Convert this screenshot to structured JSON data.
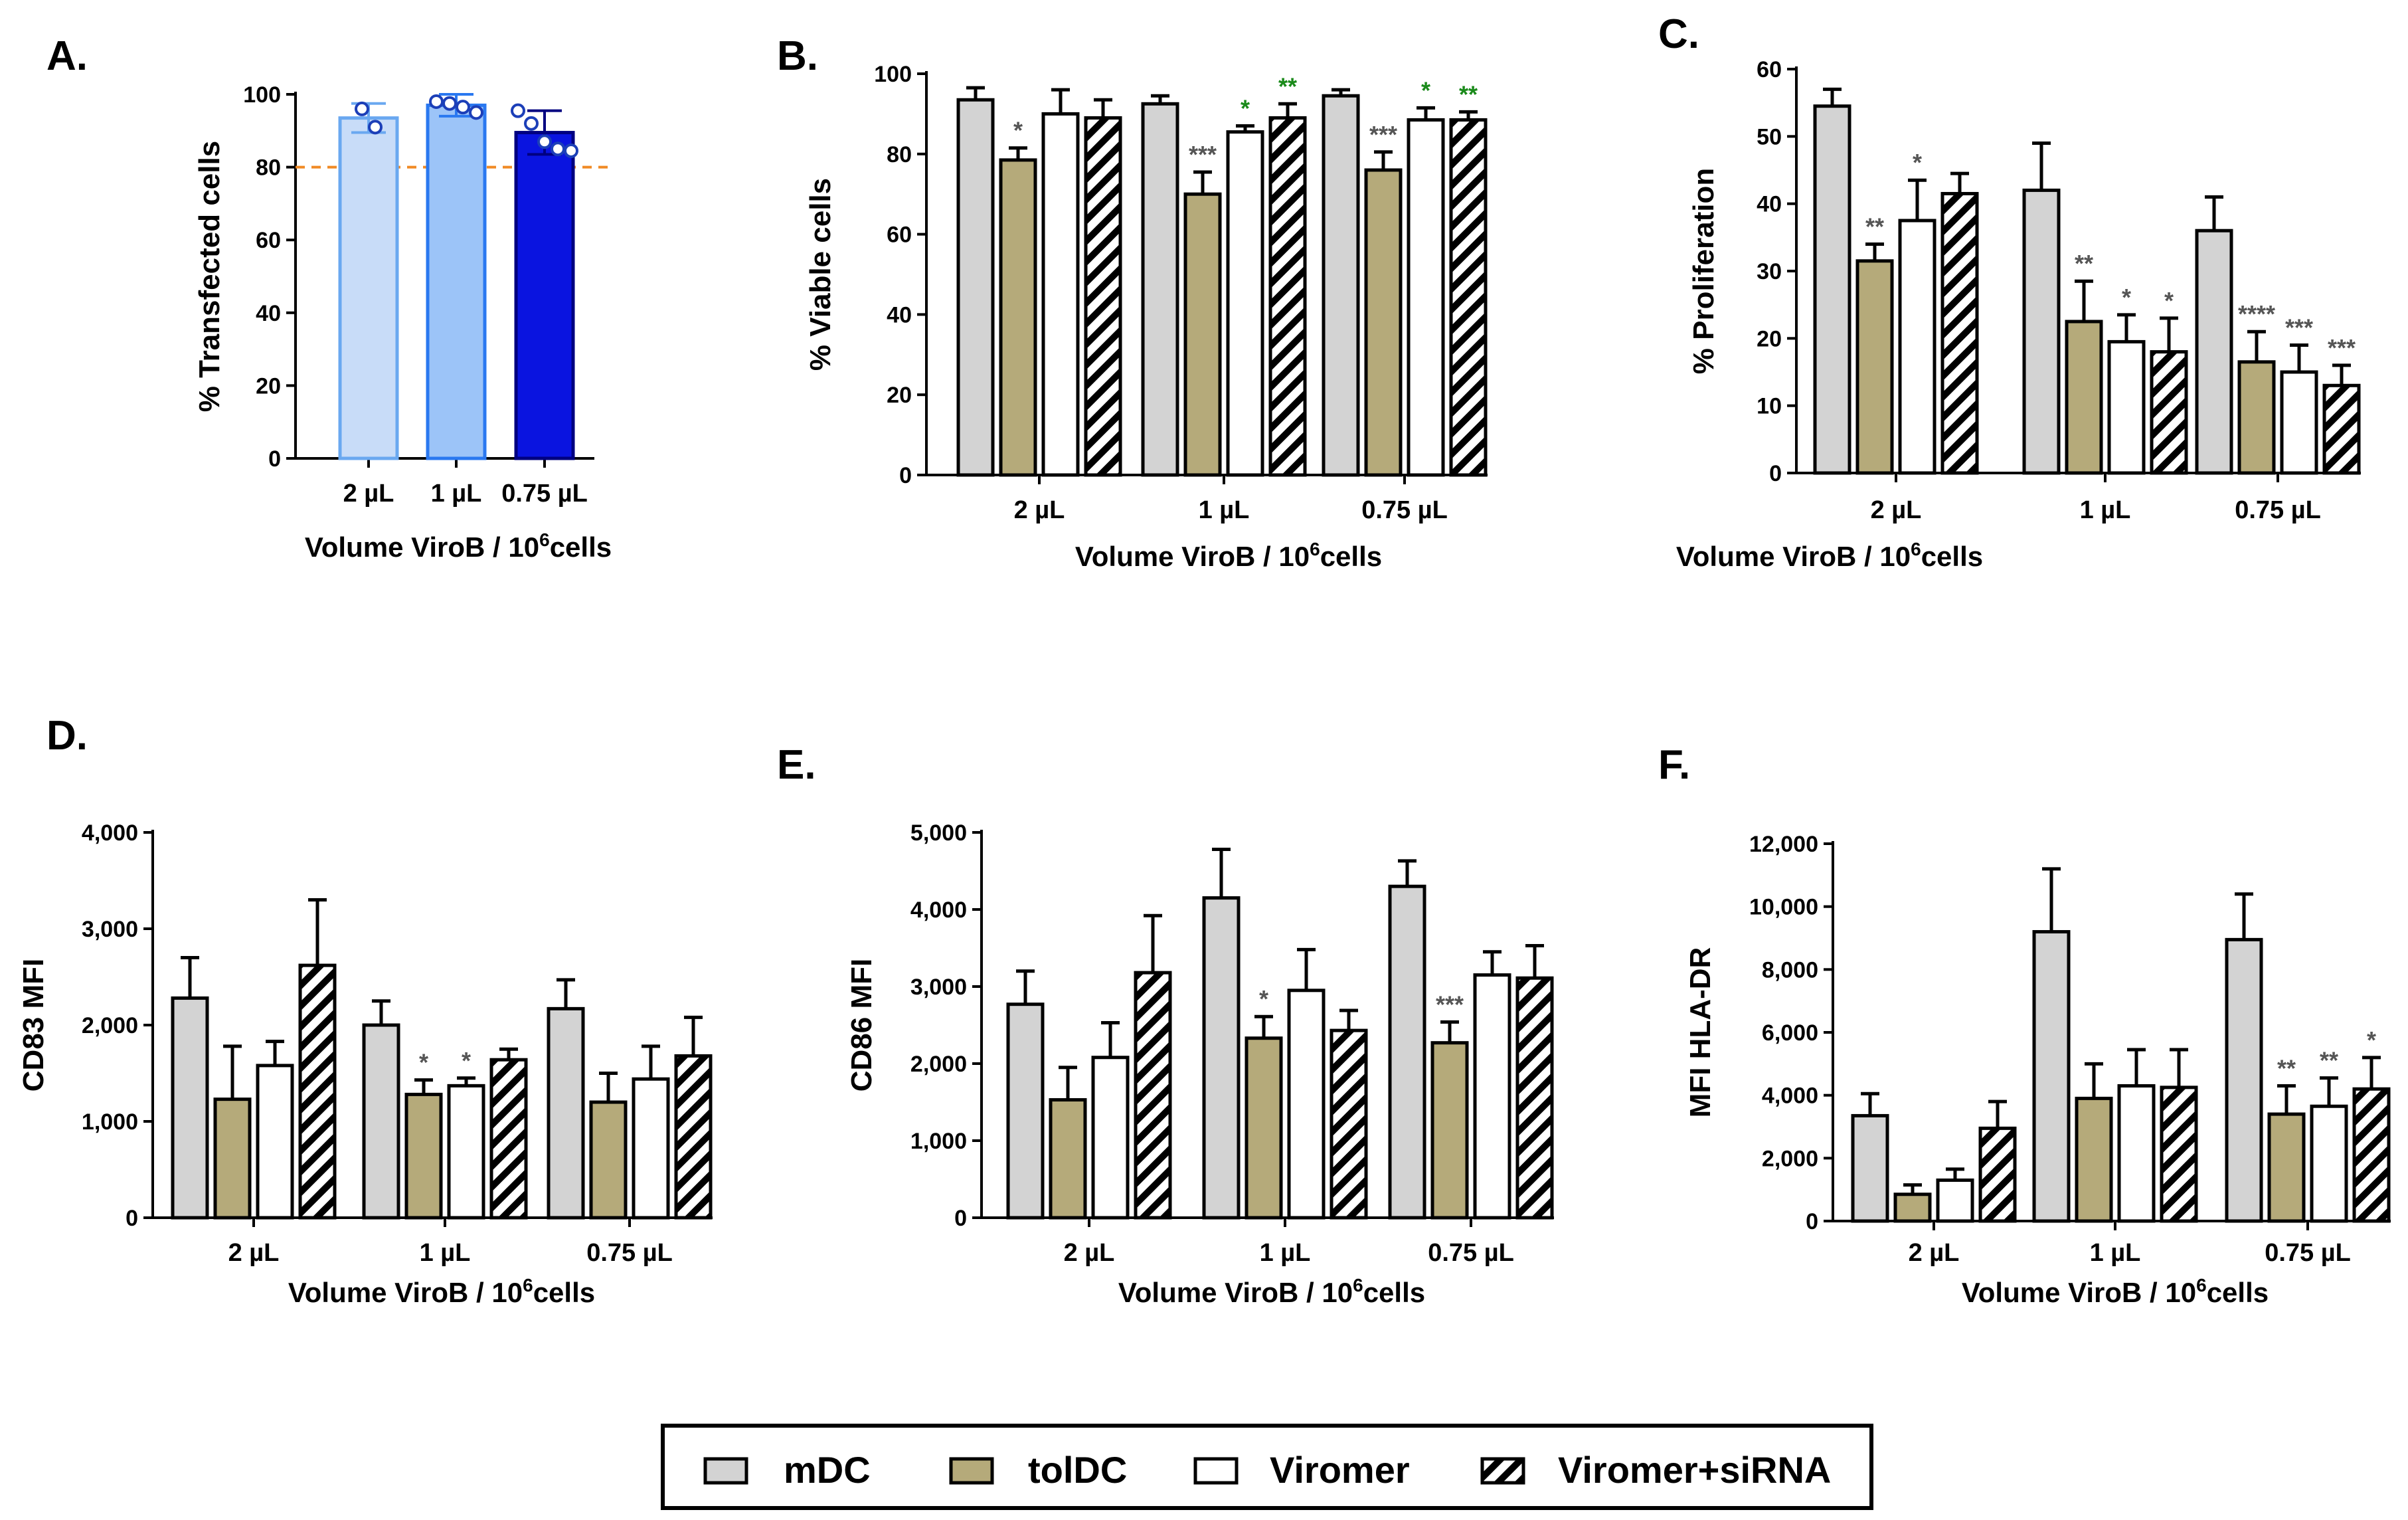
{
  "legend": {
    "items": [
      {
        "label": "mDC",
        "key": "mdc"
      },
      {
        "label": "tolDC",
        "key": "toldc"
      },
      {
        "label": "Viromer",
        "key": "viromer"
      },
      {
        "label": "Viromer+siRNA",
        "key": "virsirna"
      }
    ]
  },
  "styles": {
    "mdc": {
      "fill": "#d3d3d3"
    },
    "toldc": {
      "fill": "#b5aa7a"
    },
    "viromer": {
      "fill": "#ffffff"
    },
    "virsirna": {
      "fill": "hatch"
    },
    "sig_gray": "#555555",
    "sig_green": "#1a8a1a",
    "ref_line": "#f08a24",
    "panelA": [
      "#c8dcf8",
      "#9cc4f8",
      "#0a14e0"
    ],
    "panelA_stroke": [
      "#6aa8f0",
      "#2a78f0",
      "#000080"
    ],
    "panelA_dots": "#1c3fb8"
  },
  "chart_data": [
    {
      "id": "A",
      "letter": "A.",
      "type": "bar",
      "categories": [
        "2 µL",
        "1 µL",
        "0.75 µL"
      ],
      "values": [
        93.5,
        97,
        89.5
      ],
      "errors": [
        4,
        3,
        6
      ],
      "points": [
        [
          96,
          91
        ],
        [
          98,
          97.5,
          96.5,
          95
        ],
        [
          95.5,
          92,
          87,
          85,
          84.5
        ]
      ],
      "reference_line": 80,
      "ylim": [
        0,
        100
      ],
      "yticks": [
        0,
        20,
        40,
        60,
        80,
        100
      ],
      "ylabel": "% Transfected cells",
      "xlabel": "Volume ViroB / 10",
      "xlabel_sup": "6",
      "xlabel_tail": "cells"
    },
    {
      "id": "B",
      "letter": "B.",
      "type": "bar",
      "categories": [
        "2 µL",
        "1 µL",
        "0.75 µL"
      ],
      "series": [
        {
          "key": "mdc",
          "values": [
            93.5,
            92.5,
            94.5
          ],
          "errors": [
            3,
            2,
            1.5
          ]
        },
        {
          "key": "toldc",
          "values": [
            78.5,
            70,
            76
          ],
          "errors": [
            3,
            5.5,
            4.5
          ]
        },
        {
          "key": "viromer",
          "values": [
            90,
            85.5,
            88.5
          ],
          "errors": [
            6,
            1.5,
            3
          ]
        },
        {
          "key": "virsirna",
          "values": [
            89,
            89,
            88.5
          ],
          "errors": [
            4.5,
            3.5,
            2
          ]
        }
      ],
      "significance": [
        {
          "group": 0,
          "series": 1,
          "text": "*",
          "color": "gray"
        },
        {
          "group": 1,
          "series": 1,
          "text": "***",
          "color": "gray"
        },
        {
          "group": 1,
          "series": 2,
          "text": "*",
          "color": "green"
        },
        {
          "group": 1,
          "series": 3,
          "text": "**",
          "color": "green"
        },
        {
          "group": 2,
          "series": 1,
          "text": "***",
          "color": "gray"
        },
        {
          "group": 2,
          "series": 2,
          "text": "*",
          "color": "green"
        },
        {
          "group": 2,
          "series": 3,
          "text": "**",
          "color": "green"
        }
      ],
      "ylim": [
        0,
        100
      ],
      "yticks": [
        0,
        20,
        40,
        60,
        80,
        100
      ],
      "ylabel": "% Viable cells",
      "xlabel": "Volume ViroB / 10",
      "xlabel_sup": "6",
      "xlabel_tail": "cells"
    },
    {
      "id": "C",
      "letter": "C.",
      "type": "bar",
      "categories": [
        "2 µL",
        "1 µL",
        "0.75 µL"
      ],
      "series": [
        {
          "key": "mdc",
          "values": [
            54.5,
            42,
            36
          ],
          "errors": [
            2.5,
            7,
            5
          ]
        },
        {
          "key": "toldc",
          "values": [
            31.5,
            22.5,
            16.5
          ],
          "errors": [
            2.5,
            6,
            4.5
          ]
        },
        {
          "key": "viromer",
          "values": [
            37.5,
            19.5,
            15
          ],
          "errors": [
            6,
            4,
            4
          ]
        },
        {
          "key": "virsirna",
          "values": [
            41.5,
            18,
            13
          ],
          "errors": [
            3,
            5,
            3
          ]
        }
      ],
      "significance": [
        {
          "group": 0,
          "series": 1,
          "text": "**",
          "color": "gray"
        },
        {
          "group": 0,
          "series": 2,
          "text": "*",
          "color": "gray"
        },
        {
          "group": 1,
          "series": 1,
          "text": "**",
          "color": "gray"
        },
        {
          "group": 1,
          "series": 2,
          "text": "*",
          "color": "gray"
        },
        {
          "group": 1,
          "series": 3,
          "text": "*",
          "color": "gray"
        },
        {
          "group": 2,
          "series": 1,
          "text": "****",
          "color": "gray"
        },
        {
          "group": 2,
          "series": 2,
          "text": "***",
          "color": "gray"
        },
        {
          "group": 2,
          "series": 3,
          "text": "***",
          "color": "gray"
        }
      ],
      "ylim": [
        0,
        60
      ],
      "yticks": [
        0,
        10,
        20,
        30,
        40,
        50,
        60
      ],
      "ylabel": "% Proliferation",
      "xlabel": "Volume ViroB / 10",
      "xlabel_sup": "6",
      "xlabel_tail": "cells"
    },
    {
      "id": "D",
      "letter": "D.",
      "type": "bar",
      "categories": [
        "2 µL",
        "1 µL",
        "0.75 µL"
      ],
      "series": [
        {
          "key": "mdc",
          "values": [
            2280,
            2000,
            2170
          ],
          "errors": [
            420,
            250,
            300
          ]
        },
        {
          "key": "toldc",
          "values": [
            1230,
            1280,
            1200
          ],
          "errors": [
            550,
            150,
            300
          ]
        },
        {
          "key": "viromer",
          "values": [
            1580,
            1370,
            1440
          ],
          "errors": [
            250,
            80,
            340
          ]
        },
        {
          "key": "virsirna",
          "values": [
            2620,
            1640,
            1680
          ],
          "errors": [
            680,
            110,
            400
          ]
        }
      ],
      "significance": [
        {
          "group": 1,
          "series": 1,
          "text": "*",
          "color": "gray"
        },
        {
          "group": 1,
          "series": 2,
          "text": "*",
          "color": "gray"
        }
      ],
      "ylim": [
        0,
        4000
      ],
      "yticks": [
        0,
        1000,
        2000,
        3000,
        4000
      ],
      "ytick_labels": [
        "0",
        "1,000",
        "2,000",
        "3,000",
        "4,000"
      ],
      "ylabel": "CD83 MFI",
      "xlabel": "Volume ViroB / 10",
      "xlabel_sup": "6",
      "xlabel_tail": "cells"
    },
    {
      "id": "E",
      "letter": "E.",
      "type": "bar",
      "categories": [
        "2 µL",
        "1 µL",
        "0.75 µL"
      ],
      "series": [
        {
          "key": "mdc",
          "values": [
            2770,
            4150,
            4300
          ],
          "errors": [
            430,
            630,
            330
          ]
        },
        {
          "key": "toldc",
          "values": [
            1530,
            2330,
            2270
          ],
          "errors": [
            420,
            280,
            270
          ]
        },
        {
          "key": "viromer",
          "values": [
            2080,
            2950,
            3150
          ],
          "errors": [
            450,
            530,
            300
          ]
        },
        {
          "key": "virsirna",
          "values": [
            3180,
            2430,
            3110
          ],
          "errors": [
            740,
            260,
            420
          ]
        }
      ],
      "significance": [
        {
          "group": 1,
          "series": 1,
          "text": "*",
          "color": "gray"
        },
        {
          "group": 2,
          "series": 1,
          "text": "***",
          "color": "gray"
        }
      ],
      "ylim": [
        0,
        5000
      ],
      "yticks": [
        0,
        1000,
        2000,
        3000,
        4000,
        5000
      ],
      "ytick_labels": [
        "0",
        "1,000",
        "2,000",
        "3,000",
        "4,000",
        "5,000"
      ],
      "ylabel": "CD86 MFI",
      "xlabel": "Volume ViroB / 10",
      "xlabel_sup": "6",
      "xlabel_tail": "cells"
    },
    {
      "id": "F",
      "letter": "F.",
      "type": "bar",
      "categories": [
        "2 µL",
        "1 µL",
        "0.75 µL"
      ],
      "series": [
        {
          "key": "mdc",
          "values": [
            3350,
            9200,
            8950
          ],
          "errors": [
            700,
            2000,
            1450
          ]
        },
        {
          "key": "toldc",
          "values": [
            850,
            3900,
            3400
          ],
          "errors": [
            300,
            1100,
            900
          ]
        },
        {
          "key": "viromer",
          "values": [
            1300,
            4300,
            3650
          ],
          "errors": [
            350,
            1150,
            900
          ]
        },
        {
          "key": "virsirna",
          "values": [
            2950,
            4250,
            4200
          ],
          "errors": [
            850,
            1200,
            1000
          ]
        }
      ],
      "significance": [
        {
          "group": 2,
          "series": 1,
          "text": "**",
          "color": "gray"
        },
        {
          "group": 2,
          "series": 2,
          "text": "**",
          "color": "gray"
        },
        {
          "group": 2,
          "series": 3,
          "text": "*",
          "color": "gray"
        }
      ],
      "ylim": [
        0,
        12000
      ],
      "yticks": [
        0,
        2000,
        4000,
        6000,
        8000,
        10000,
        12000
      ],
      "ytick_labels": [
        "0",
        "2,000",
        "4,000",
        "6,000",
        "8,000",
        "10,000",
        "12,000"
      ],
      "ylabel": "MFI HLA-DR",
      "xlabel": "Volume ViroB / 10",
      "xlabel_sup": "6",
      "xlabel_tail": "cells"
    }
  ]
}
